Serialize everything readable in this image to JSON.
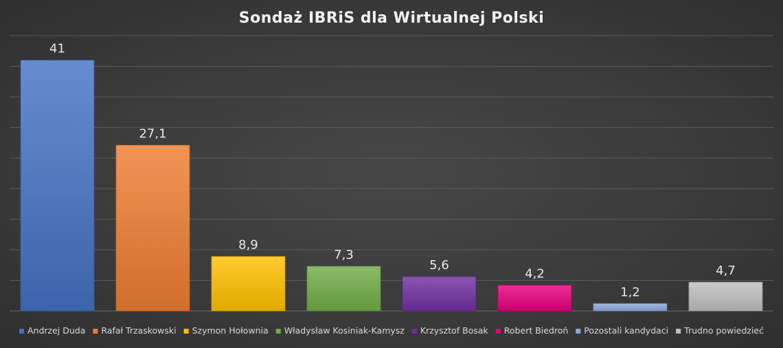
{
  "chart_data": {
    "type": "bar",
    "title": "Sondaż IBRiS dla Wirtualnej Polski",
    "categories": [
      "Andrzej Duda",
      "Rafał Trzaskowski",
      "Szymon Hołownia",
      "Władysław Kosiniak-Kamysz",
      "Krzysztof Bosak",
      "Robert Biedroń",
      "Pozostali kandydaci",
      "Trudno powiedzieć"
    ],
    "values": [
      41,
      27.1,
      8.9,
      7.3,
      5.6,
      4.2,
      1.2,
      4.7
    ],
    "value_labels": [
      "41",
      "27,1",
      "8,9",
      "7,3",
      "5,6",
      "4,2",
      "1,2",
      "4,7"
    ],
    "colors": [
      "#4472C4",
      "#ED7D31",
      "#FFC000",
      "#70AD47",
      "#7030A0",
      "#E6007E",
      "#8EA9DB",
      "#BFBFBF"
    ],
    "ylim": [
      0,
      45
    ],
    "grid": true,
    "legend": "bottom",
    "xlabel": "",
    "ylabel": ""
  }
}
